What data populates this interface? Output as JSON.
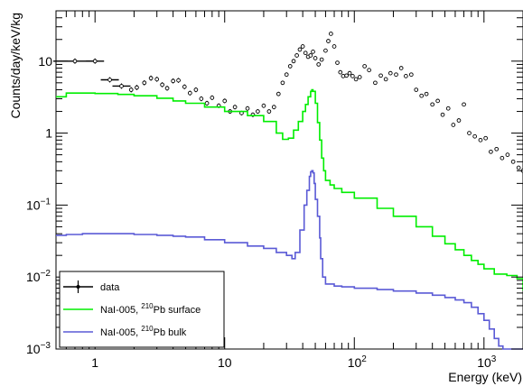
{
  "chart_data": {
    "type": "line",
    "title": "",
    "xlabel": "Energy (keV)",
    "ylabel": "Counts/day/keV/kg",
    "xscale": "log",
    "yscale": "log",
    "xlim": [
      0.5,
      2000
    ],
    "ylim": [
      0.001,
      50
    ],
    "grid": false,
    "legend_position": "bottom-left",
    "x_ticks": [
      {
        "value": 1,
        "label": "1"
      },
      {
        "value": 10,
        "label": "10"
      },
      {
        "value": 100,
        "label": "10",
        "sup": "2"
      },
      {
        "value": 1000,
        "label": "10",
        "sup": "3"
      }
    ],
    "y_ticks": [
      {
        "value": 0.001,
        "label": "10",
        "sup": "−3"
      },
      {
        "value": 0.01,
        "label": "10",
        "sup": "−2"
      },
      {
        "value": 0.1,
        "label": "10",
        "sup": "−1"
      },
      {
        "value": 1,
        "label": "1"
      },
      {
        "value": 10,
        "label": "10"
      }
    ],
    "series": [
      {
        "name": "data",
        "kind": "points",
        "color": "#000000",
        "x": [
          0.7,
          1.0,
          1.3,
          1.6,
          1.9,
          2.1,
          2.4,
          2.7,
          3.0,
          3.3,
          3.6,
          4.0,
          4.4,
          4.9,
          5.4,
          6.0,
          6.6,
          7.3,
          8.0,
          9.0,
          10,
          11,
          12,
          13.5,
          15,
          16.5,
          18,
          20,
          22,
          24,
          26,
          28,
          30,
          32,
          34,
          36,
          38,
          40,
          42,
          44,
          46,
          48,
          50,
          53,
          56,
          60,
          63,
          66,
          70,
          74,
          78,
          82,
          87,
          92,
          97,
          103,
          110,
          120,
          130,
          145,
          160,
          175,
          190,
          210,
          230,
          250,
          275,
          300,
          330,
          360,
          400,
          440,
          480,
          530,
          580,
          640,
          700,
          770,
          850,
          940,
          1030,
          1130,
          1250,
          1380,
          1520,
          1680,
          1850,
          2000
        ],
        "y": [
          10,
          10,
          5.5,
          4.5,
          4.0,
          4.3,
          5.0,
          5.8,
          5.6,
          4.7,
          4.2,
          5.3,
          5.4,
          4.4,
          3.6,
          4.0,
          3.0,
          2.6,
          3.1,
          2.4,
          2.8,
          2.0,
          2.3,
          1.9,
          2.2,
          1.8,
          2.0,
          2.4,
          2.0,
          2.3,
          3.5,
          5.0,
          6.5,
          8.5,
          10,
          12,
          14.5,
          16,
          13,
          11.5,
          12,
          13.5,
          11,
          9,
          10.5,
          14,
          19,
          24,
          16,
          9.5,
          7,
          6.2,
          6.3,
          6.8,
          6.2,
          5.6,
          6.0,
          8.5,
          7.5,
          5.0,
          6.3,
          5.6,
          6.8,
          6.5,
          8.0,
          6.2,
          6.5,
          4.0,
          3.3,
          3.5,
          2.5,
          2.8,
          1.8,
          2.2,
          1.3,
          1.5,
          2.5,
          1.0,
          0.9,
          0.8,
          0.85,
          0.55,
          0.6,
          0.45,
          0.5,
          0.4,
          0.33,
          0.3
        ]
      },
      {
        "name": "NaI-005, ",
        "name_sup": "210",
        "name_suffix": "Pb surface",
        "kind": "step",
        "color": "#00ee00",
        "x": [
          0.5,
          0.6,
          0.8,
          1.0,
          1.5,
          2.0,
          3.0,
          4.0,
          5.0,
          7.0,
          10,
          15,
          20,
          25,
          28,
          31,
          34,
          37,
          40,
          42,
          44,
          46,
          47,
          48,
          50,
          52,
          54,
          56,
          58,
          60,
          65,
          70,
          80,
          100,
          150,
          200,
          300,
          400,
          500,
          600,
          700,
          800,
          900,
          1000,
          1200,
          1500,
          1800,
          2000
        ],
        "y": [
          3.2,
          3.6,
          3.6,
          3.55,
          3.45,
          3.3,
          3.05,
          2.8,
          2.6,
          2.3,
          2.0,
          1.75,
          1.45,
          1.0,
          0.82,
          0.85,
          1.1,
          1.45,
          2.0,
          2.5,
          3.2,
          3.8,
          4.0,
          3.8,
          2.6,
          1.4,
          0.8,
          0.45,
          0.3,
          0.22,
          0.19,
          0.17,
          0.15,
          0.125,
          0.09,
          0.07,
          0.05,
          0.037,
          0.029,
          0.024,
          0.02,
          0.017,
          0.015,
          0.013,
          0.011,
          0.0105,
          0.0095,
          0.0065
        ]
      },
      {
        "name": "NaI-005, ",
        "name_sup": "210",
        "name_suffix": "Pb bulk",
        "kind": "step",
        "color": "#5a5ad6",
        "x": [
          0.5,
          0.6,
          0.8,
          1.0,
          1.5,
          2.0,
          3.0,
          4.0,
          5.0,
          7.0,
          10,
          15,
          20,
          25,
          30,
          33,
          35,
          38,
          41,
          43,
          45,
          46,
          47,
          48,
          49,
          50,
          52,
          54,
          55,
          57,
          60,
          70,
          80,
          100,
          150,
          200,
          300,
          400,
          500,
          600,
          700,
          800,
          900,
          1000,
          1100,
          1200,
          1300,
          1400,
          1500
        ],
        "y": [
          0.038,
          0.039,
          0.04,
          0.04,
          0.04,
          0.039,
          0.038,
          0.037,
          0.036,
          0.033,
          0.03,
          0.027,
          0.025,
          0.022,
          0.02,
          0.018,
          0.022,
          0.045,
          0.1,
          0.16,
          0.25,
          0.29,
          0.3,
          0.28,
          0.2,
          0.12,
          0.07,
          0.035,
          0.018,
          0.01,
          0.008,
          0.0075,
          0.0073,
          0.007,
          0.0067,
          0.0064,
          0.006,
          0.0056,
          0.0052,
          0.0048,
          0.0044,
          0.0038,
          0.0031,
          0.0025,
          0.0019,
          0.0014,
          0.0011,
          0.001,
          0.001
        ]
      }
    ]
  }
}
